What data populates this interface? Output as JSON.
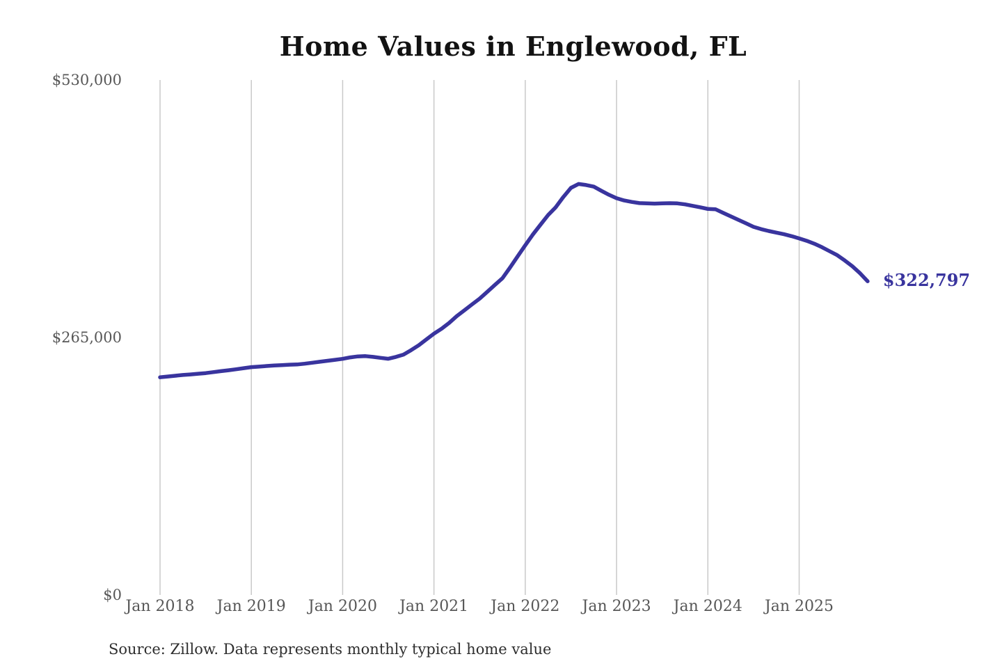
{
  "title": "Home Values in Englewood, FL",
  "source_note": "Source: Zillow. Data represents monthly typical home value",
  "colors": {
    "background": "#ffffff",
    "line": "#39349e",
    "grid": "#c9c9c9",
    "axis_text": "#575757",
    "title_text": "#121212",
    "source_text": "#2e2e2e"
  },
  "chart_data": {
    "type": "line",
    "title": "Home Values in Englewood, FL",
    "xlabel": "",
    "ylabel": "",
    "ylim": [
      0,
      530000
    ],
    "grid": "vertical-only",
    "legend": "none",
    "frequency": "monthly",
    "x_start": "2018-01",
    "x_end": "2025-10",
    "x_tick_labels": [
      "Jan 2018",
      "Jan 2019",
      "Jan 2020",
      "Jan 2021",
      "Jan 2022",
      "Jan 2023",
      "Jan 2024",
      "Jan 2025"
    ],
    "y_ticks": [
      {
        "label": "$530,000",
        "value": 530000
      },
      {
        "label": "$265,000",
        "value": 265000
      },
      {
        "label": "$0",
        "value": 0
      }
    ],
    "series": [
      {
        "name": "Typical home value",
        "values": [
          224000,
          224800,
          225600,
          226400,
          227000,
          227700,
          228300,
          229300,
          230300,
          231300,
          232300,
          233400,
          234500,
          235000,
          235600,
          236200,
          236600,
          237000,
          237200,
          238000,
          239000,
          240000,
          241000,
          242000,
          243000,
          244500,
          245500,
          245800,
          245000,
          244000,
          243100,
          245000,
          247400,
          252000,
          257000,
          263000,
          268900,
          274000,
          280000,
          287000,
          293000,
          299000,
          305000,
          312000,
          319000,
          326000,
          337000,
          348500,
          360000,
          371000,
          381000,
          391000,
          399000,
          409500,
          419000,
          423000,
          421900,
          420300,
          416000,
          411900,
          408300,
          406000,
          404500,
          403300,
          403000,
          402800,
          403000,
          403200,
          403000,
          402000,
          400500,
          399000,
          397300,
          397000,
          393300,
          389700,
          386100,
          382500,
          378900,
          376500,
          374600,
          372900,
          371300,
          369300,
          367000,
          364500,
          361500,
          357900,
          353800,
          349700,
          344200,
          338300,
          331100,
          322797
        ]
      }
    ],
    "final_value": 322797,
    "final_value_label": "$322,797"
  }
}
